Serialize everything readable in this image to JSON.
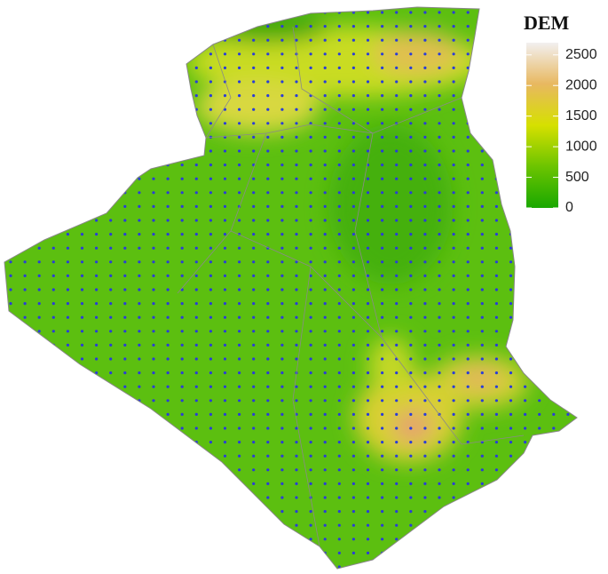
{
  "legend": {
    "title": "DEM",
    "ticks": [
      0,
      500,
      1000,
      1500,
      2000,
      2500
    ],
    "range": [
      0,
      2700
    ],
    "colors": [
      "#19a800",
      "#6cc400",
      "#d6e000",
      "#e8b860",
      "#f2f0f0"
    ]
  }
}
